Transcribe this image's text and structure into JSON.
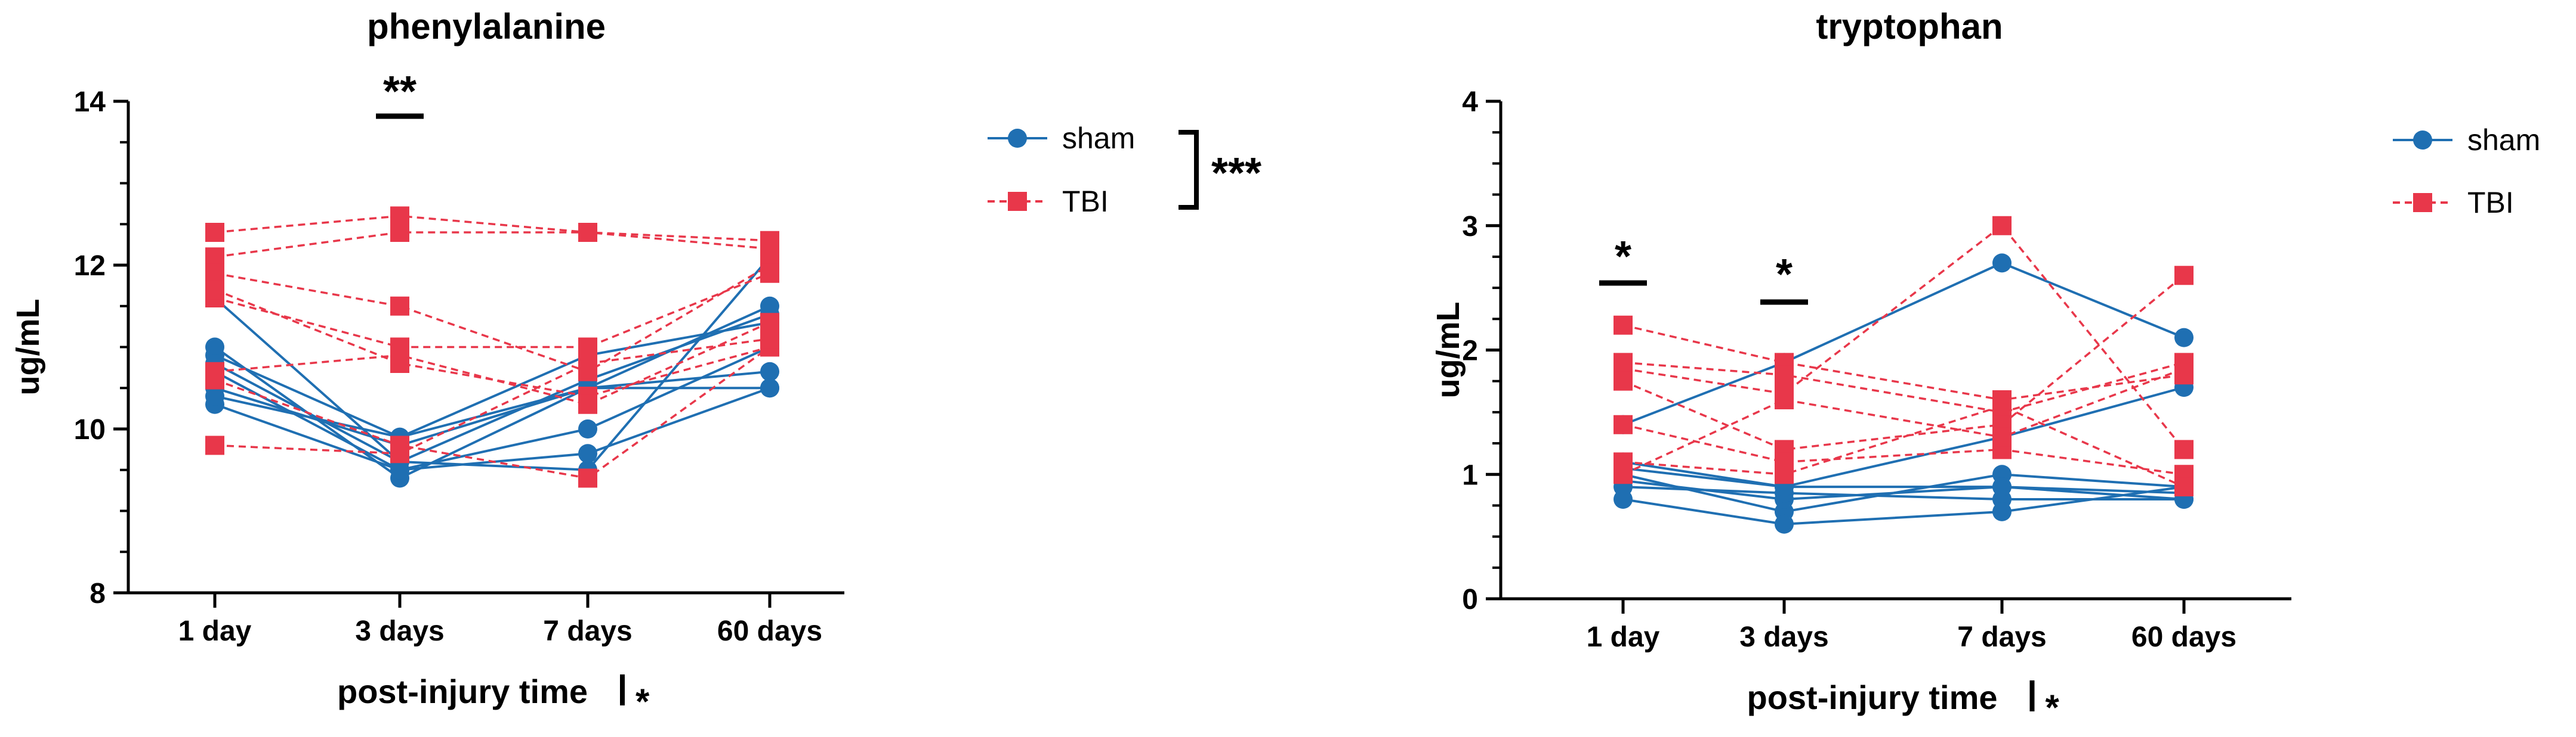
{
  "colors": {
    "sham": "#1f6fb2",
    "tbi": "#e8374a",
    "axis": "#000000"
  },
  "chart_data": [
    {
      "type": "line",
      "title": "phenylalanine",
      "xlabel": "post-injury time",
      "xlabel_marker": "*",
      "ylabel": "ug/mL",
      "categories": [
        "1 day",
        "3 days",
        "7 days",
        "60 days"
      ],
      "ylim": [
        8,
        14
      ],
      "yticks": [
        "8",
        "10",
        "12",
        "14"
      ],
      "grid": false,
      "legend": {
        "placement": "right",
        "entries": [
          "sham",
          "TBI"
        ],
        "bracket_annotation": "***"
      },
      "significance": [
        {
          "category": "3 days",
          "label": "**"
        }
      ],
      "series": [
        {
          "name": "sham",
          "group": "sham",
          "style": "solid-circle",
          "lines": [
            [
              11.6,
              9.6,
              9.5,
              12.1
            ],
            [
              11.0,
              9.4,
              10.5,
              11.5
            ],
            [
              10.9,
              9.9,
              10.9,
              11.3
            ],
            [
              10.7,
              9.5,
              10.0,
              11.0
            ],
            [
              10.5,
              9.8,
              10.5,
              10.7
            ],
            [
              10.3,
              9.5,
              9.7,
              10.5
            ],
            [
              10.4,
              9.9,
              10.5,
              10.5
            ],
            [
              10.8,
              9.6,
              10.6,
              11.4
            ]
          ]
        },
        {
          "name": "TBI",
          "group": "tbi",
          "style": "dashed-square",
          "lines": [
            [
              12.4,
              12.6,
              12.4,
              12.3
            ],
            [
              12.1,
              12.4,
              12.4,
              12.2
            ],
            [
              11.9,
              11.5,
              10.7,
              12.0
            ],
            [
              11.6,
              11.0,
              11.0,
              11.9
            ],
            [
              11.7,
              10.8,
              10.4,
              11.0
            ],
            [
              10.7,
              10.9,
              10.3,
              11.3
            ],
            [
              10.6,
              9.8,
              9.4,
              11.0
            ],
            [
              9.8,
              9.7,
              10.8,
              11.1
            ]
          ]
        }
      ]
    },
    {
      "type": "line",
      "title": "tryptophan",
      "xlabel": "post-injury time",
      "xlabel_marker": "*",
      "ylabel": "ug/mL",
      "categories": [
        "1 day",
        "3 days",
        "7 days",
        "60 days"
      ],
      "ylim": [
        0,
        4
      ],
      "yticks": [
        "0",
        "1",
        "2",
        "3",
        "4"
      ],
      "grid": false,
      "legend": {
        "placement": "right",
        "entries": [
          "sham",
          "TBI"
        ]
      },
      "significance": [
        {
          "category": "1 day",
          "label": "*"
        },
        {
          "category": "3 days",
          "label": "*"
        }
      ],
      "series": [
        {
          "name": "sham",
          "group": "sham",
          "style": "solid-circle",
          "lines": [
            [
              1.4,
              1.9,
              2.7,
              2.1
            ],
            [
              1.1,
              0.9,
              1.3,
              1.7
            ],
            [
              1.0,
              0.7,
              1.0,
              0.9
            ],
            [
              0.95,
              0.8,
              0.9,
              0.85
            ],
            [
              0.9,
              0.85,
              0.8,
              0.8
            ],
            [
              0.8,
              0.6,
              0.7,
              0.9
            ],
            [
              1.05,
              0.9,
              0.9,
              0.8
            ]
          ]
        },
        {
          "name": "TBI",
          "group": "tbi",
          "style": "dashed-square",
          "lines": [
            [
              2.2,
              1.9,
              1.6,
              1.8
            ],
            [
              1.9,
              1.8,
              1.5,
              1.9
            ],
            [
              1.85,
              1.65,
              3.0,
              1.2
            ],
            [
              1.75,
              1.2,
              1.4,
              2.6
            ],
            [
              1.4,
              1.1,
              1.2,
              1.0
            ],
            [
              1.1,
              1.0,
              1.55,
              0.9
            ],
            [
              1.0,
              1.6,
              1.3,
              1.85
            ]
          ]
        }
      ]
    }
  ]
}
